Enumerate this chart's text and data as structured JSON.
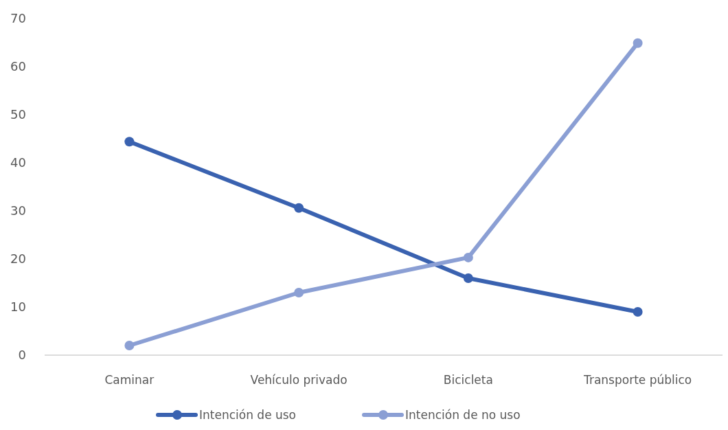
{
  "chart_data": {
    "type": "line",
    "categories": [
      "Caminar",
      "Vehículo privado",
      "Bicicleta",
      "Transporte público"
    ],
    "series": [
      {
        "name": "Intención de uso",
        "color": "#3a62b0",
        "values": [
          44.4,
          30.6,
          16,
          9
        ]
      },
      {
        "name": "Intención de no uso",
        "color": "#8b9fd4",
        "values": [
          2,
          13,
          20.3,
          64.9
        ]
      }
    ],
    "ylim": [
      0,
      70
    ],
    "yticks": [
      0,
      10,
      20,
      30,
      40,
      50,
      60,
      70
    ],
    "grid": false,
    "legend": "bottom",
    "marker": "circle",
    "line_style": "solid"
  }
}
